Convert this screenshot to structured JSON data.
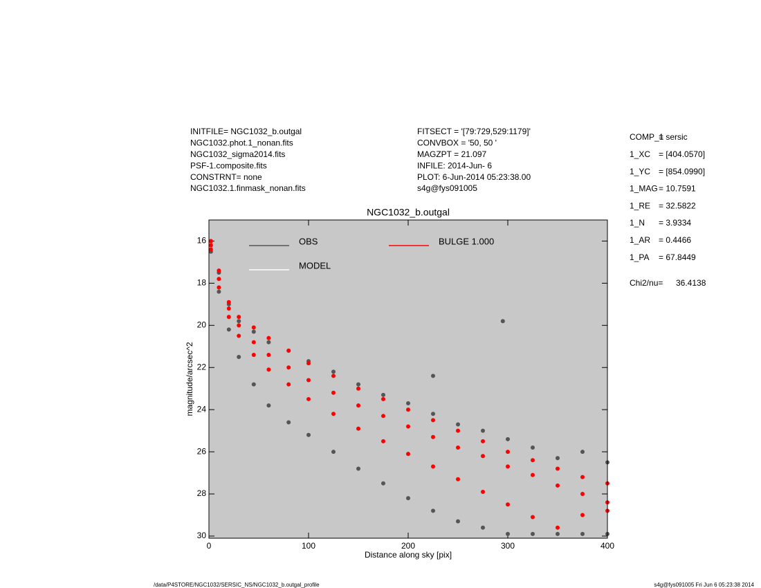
{
  "chart_data": {
    "type": "scatter",
    "title": "NGC1032_b.outgal",
    "x_label": "Distance along sky [pix]",
    "y_label": "magnitude/arcsec^2",
    "header_left": [
      "INITFILE= NGC1032_b.outgal",
      "NGC1032.phot.1_nonan.fits",
      "NGC1032_sigma2014.fits",
      "PSF-1.composite.fits",
      "CONSTRNT= none",
      "NGC1032.1.finmask_nonan.fits"
    ],
    "header_middle": [
      "FITSECT = '[79:729,529:1179]'",
      "CONVBOX = '50, 50  '",
      "MAGZPT =             21.097",
      "INFILE: 2014-Jun- 6",
      "PLOT:  6-Jun-2014 05:23:38.00",
      "s4g@fys091005"
    ],
    "params": [
      [
        "COMP_1",
        "= sersic"
      ],
      [
        "1_XC",
        "= [404.0570]"
      ],
      [
        "1_YC",
        "= [854.0990]"
      ],
      [
        "1_MAG",
        "= 10.7591"
      ],
      [
        "1_RE",
        "= 32.5822"
      ],
      [
        "1_N",
        "= 3.9334"
      ],
      [
        "1_AR",
        "= 0.4466"
      ],
      [
        "1_PA",
        "= 67.8449"
      ]
    ],
    "chi2_label": "Chi2/nu=",
    "chi2_value": "36.4138",
    "footer_left": "/data/P4STORE/NGC1032/SERSIC_NS/NGC1032_b.outgal_profile",
    "footer_right": "s4g@fys091005  Fri Jun  6 05:23:38 2014",
    "xlim": [
      0,
      400
    ],
    "xticks": [
      0,
      100,
      200,
      300,
      400
    ],
    "ylim": [
      30.1,
      15
    ],
    "yticks": [
      16,
      18,
      20,
      22,
      24,
      26,
      28,
      30
    ],
    "series": [
      {
        "name": "OBS",
        "color": "#555555",
        "x": [
          2,
          10,
          20,
          30,
          45,
          60,
          80,
          100,
          125,
          150,
          175,
          200,
          225,
          250,
          275,
          300,
          325,
          350,
          375,
          400,
          2,
          10,
          20,
          30,
          45,
          60,
          80,
          100,
          125,
          150,
          175,
          200,
          225,
          250,
          275,
          300,
          325,
          350,
          375,
          400,
          295,
          225
        ],
        "values": [
          16.0,
          17.5,
          19.0,
          19.8,
          20.3,
          20.8,
          21.2,
          21.7,
          22.2,
          22.8,
          23.3,
          23.7,
          24.2,
          24.7,
          25.0,
          25.4,
          25.8,
          26.3,
          26.0,
          26.5,
          16.5,
          18.4,
          20.2,
          21.5,
          22.8,
          23.8,
          24.6,
          25.2,
          26.0,
          26.8,
          27.5,
          28.2,
          28.8,
          29.3,
          29.6,
          29.9,
          29.9,
          29.9,
          29.9,
          29.9,
          19.8,
          22.4
        ]
      },
      {
        "name": "MODEL",
        "color": "#ffffff",
        "x": [],
        "values": []
      },
      {
        "name": "BULGE  1.000",
        "color": "#ff0000",
        "x": [
          2,
          10,
          20,
          30,
          45,
          60,
          80,
          100,
          125,
          150,
          175,
          200,
          225,
          250,
          275,
          300,
          325,
          350,
          375,
          400,
          2,
          10,
          20,
          30,
          45,
          60,
          80,
          100,
          125,
          150,
          175,
          200,
          225,
          250,
          275,
          300,
          325,
          350,
          375,
          400,
          2,
          10,
          20,
          30,
          45,
          60,
          80,
          100,
          125,
          150,
          175,
          200,
          225,
          250,
          275,
          300,
          325,
          350,
          375,
          400
        ],
        "values": [
          16.0,
          17.4,
          18.9,
          19.6,
          20.1,
          20.6,
          21.2,
          21.8,
          22.4,
          23.0,
          23.5,
          24.0,
          24.5,
          25.0,
          25.5,
          26.0,
          26.4,
          26.8,
          27.2,
          27.5,
          16.2,
          17.8,
          19.2,
          20.0,
          20.8,
          21.4,
          22.0,
          22.6,
          23.2,
          23.8,
          24.3,
          24.8,
          25.3,
          25.8,
          26.2,
          26.7,
          27.1,
          27.6,
          28.0,
          28.4,
          16.4,
          18.2,
          19.6,
          20.5,
          21.4,
          22.1,
          22.8,
          23.5,
          24.2,
          24.9,
          25.5,
          26.1,
          26.7,
          27.3,
          27.9,
          28.5,
          29.1,
          29.6,
          29.0,
          28.8
        ]
      }
    ]
  }
}
